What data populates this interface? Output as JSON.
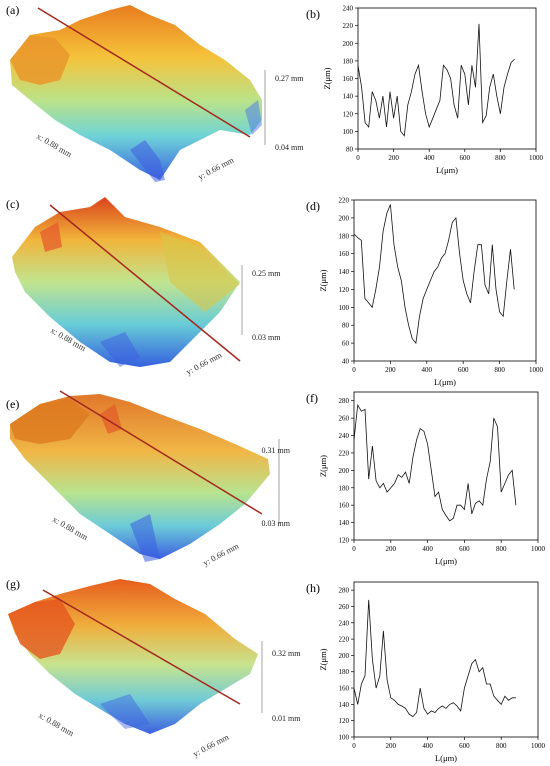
{
  "panels_3d": [
    {
      "label": "(a)",
      "xlabel": "x: 0.88 mm",
      "ylabel": "y: 0.66 mm",
      "ztop": "0.27 mm",
      "zbot": "0.04 mm"
    },
    {
      "label": "(c)",
      "xlabel": "x: 0.88 mm",
      "ylabel": "y: 0.66 mm",
      "ztop": "0.25 mm",
      "zbot": "0.03 mm"
    },
    {
      "label": "(e)",
      "xlabel": "x: 0.88 mm",
      "ylabel": "y: 0.66 mm",
      "ztop": "0.31 mm",
      "zbot": "0.03 mm"
    },
    {
      "label": "(g)",
      "xlabel": "x: 0.88 mm",
      "ylabel": "y: 0.66 mm",
      "ztop": "0.32 mm",
      "zbot": "0.01 mm"
    }
  ],
  "chart_data": [
    {
      "label": "(b)",
      "type": "line",
      "xlabel": "L(μm)",
      "ylabel": "Z(μm)",
      "xlim": [
        0,
        1000
      ],
      "ylim": [
        80,
        240
      ],
      "xticks": [
        "0",
        "200",
        "400",
        "600",
        "800",
        "1000"
      ],
      "yticks": [
        "80",
        "100",
        "120",
        "140",
        "160",
        "180",
        "200",
        "220",
        "240"
      ],
      "x": [
        0,
        20,
        40,
        60,
        80,
        100,
        120,
        140,
        160,
        180,
        200,
        220,
        240,
        260,
        280,
        300,
        320,
        340,
        360,
        380,
        400,
        420,
        440,
        460,
        480,
        500,
        520,
        540,
        560,
        580,
        600,
        620,
        640,
        660,
        680,
        700,
        720,
        740,
        760,
        780,
        800,
        820,
        840,
        860,
        880
      ],
      "y": [
        175,
        150,
        110,
        105,
        145,
        135,
        115,
        140,
        105,
        145,
        115,
        140,
        100,
        95,
        130,
        145,
        165,
        175,
        145,
        120,
        105,
        115,
        125,
        135,
        175,
        170,
        160,
        130,
        115,
        175,
        165,
        130,
        175,
        150,
        222,
        110,
        118,
        150,
        165,
        140,
        120,
        150,
        165,
        178,
        182
      ]
    },
    {
      "label": "(d)",
      "type": "line",
      "xlabel": "L(μm)",
      "ylabel": "Z(μm)",
      "xlim": [
        0,
        1000
      ],
      "ylim": [
        40,
        220
      ],
      "xticks": [
        "0",
        "200",
        "400",
        "600",
        "800",
        "1000"
      ],
      "yticks": [
        "40",
        "60",
        "80",
        "100",
        "120",
        "140",
        "160",
        "180",
        "200",
        "220"
      ],
      "x": [
        0,
        20,
        40,
        60,
        80,
        100,
        120,
        140,
        160,
        180,
        200,
        220,
        240,
        260,
        280,
        300,
        320,
        340,
        360,
        380,
        400,
        420,
        440,
        460,
        480,
        500,
        520,
        540,
        560,
        580,
        600,
        620,
        640,
        660,
        680,
        700,
        720,
        740,
        760,
        780,
        800,
        820,
        840,
        860,
        880
      ],
      "y": [
        182,
        178,
        175,
        110,
        105,
        100,
        120,
        145,
        185,
        205,
        215,
        170,
        145,
        130,
        100,
        80,
        65,
        60,
        90,
        110,
        120,
        130,
        140,
        145,
        155,
        160,
        175,
        195,
        200,
        160,
        130,
        115,
        105,
        140,
        170,
        170,
        125,
        115,
        170,
        120,
        95,
        90,
        130,
        165,
        120
      ]
    },
    {
      "label": "(f)",
      "type": "line",
      "xlabel": "L(μm)",
      "ylabel": "Z(μm)",
      "xlim": [
        0,
        1000
      ],
      "ylim": [
        120,
        290
      ],
      "xticks": [
        "0",
        "200",
        "400",
        "600",
        "800",
        "1000"
      ],
      "yticks": [
        "120",
        "140",
        "160",
        "180",
        "200",
        "220",
        "240",
        "260",
        "280"
      ],
      "x": [
        0,
        20,
        40,
        60,
        80,
        100,
        120,
        140,
        160,
        180,
        200,
        220,
        240,
        260,
        280,
        300,
        320,
        340,
        360,
        380,
        400,
        420,
        440,
        460,
        480,
        500,
        520,
        540,
        560,
        580,
        600,
        620,
        640,
        660,
        680,
        700,
        720,
        740,
        760,
        780,
        800,
        820,
        840,
        860,
        880
      ],
      "y": [
        235,
        275,
        268,
        270,
        190,
        228,
        188,
        180,
        185,
        175,
        180,
        185,
        195,
        192,
        198,
        185,
        215,
        235,
        248,
        245,
        230,
        200,
        170,
        175,
        155,
        148,
        142,
        145,
        160,
        160,
        155,
        185,
        150,
        162,
        165,
        160,
        190,
        210,
        260,
        250,
        175,
        185,
        195,
        200,
        160
      ]
    },
    {
      "label": "(h)",
      "type": "line",
      "xlabel": "L(μm)",
      "ylabel": "Z(μm)",
      "xlim": [
        0,
        1000
      ],
      "ylim": [
        100,
        290
      ],
      "xticks": [
        "0",
        "200",
        "400",
        "600",
        "800",
        "1000"
      ],
      "yticks": [
        "100",
        "120",
        "140",
        "160",
        "180",
        "200",
        "220",
        "240",
        "260",
        "280"
      ],
      "x": [
        0,
        20,
        40,
        60,
        80,
        100,
        120,
        140,
        160,
        180,
        200,
        220,
        240,
        260,
        280,
        300,
        320,
        340,
        360,
        380,
        400,
        420,
        440,
        460,
        480,
        500,
        520,
        540,
        560,
        580,
        600,
        620,
        640,
        660,
        680,
        700,
        720,
        740,
        760,
        780,
        800,
        820,
        840,
        860,
        880
      ],
      "y": [
        160,
        140,
        165,
        175,
        268,
        195,
        160,
        175,
        230,
        170,
        148,
        145,
        140,
        138,
        135,
        128,
        125,
        130,
        160,
        135,
        128,
        132,
        130,
        135,
        138,
        135,
        140,
        142,
        138,
        132,
        160,
        175,
        190,
        195,
        180,
        185,
        165,
        165,
        150,
        145,
        140,
        150,
        145,
        148,
        148
      ]
    }
  ]
}
